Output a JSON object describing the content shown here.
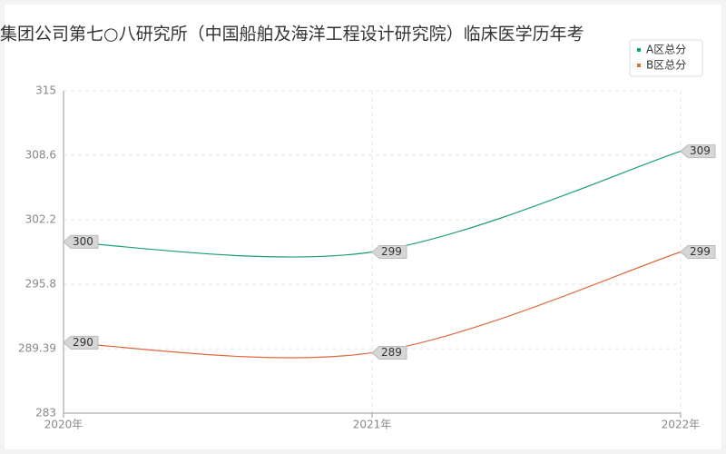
{
  "chart_data": {
    "type": "line",
    "title": "集团公司第七○八研究所（中国船舶及海洋工程设计研究院）临床医学历年考",
    "categories": [
      "2020年",
      "2021年",
      "2022年"
    ],
    "series": [
      {
        "name": "A区总分",
        "color": "#1a9e77",
        "values": [
          300,
          299,
          309
        ]
      },
      {
        "name": "B区总分",
        "color": "#e0693f",
        "values": [
          290,
          289,
          299
        ]
      }
    ],
    "ylim": [
      283,
      315
    ],
    "yticks": [
      283,
      289.39,
      295.8,
      302.2,
      308.6,
      315
    ],
    "grid": true,
    "legend": "top-right"
  }
}
